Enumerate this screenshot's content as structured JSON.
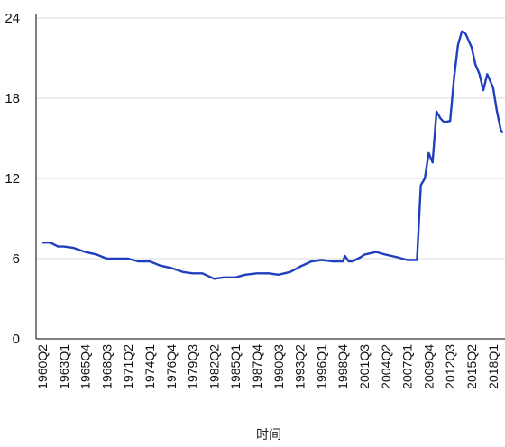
{
  "colors": {
    "line": "#1f3fbf",
    "grid": "#d9d9d9",
    "axis": "#000000",
    "background": "#ffffff"
  },
  "chart_data": {
    "type": "line",
    "title": "",
    "xlabel": "时间",
    "ylabel": "",
    "ylim": [
      0,
      24
    ],
    "yticks": [
      0,
      6,
      12,
      18,
      24
    ],
    "grid": "horizontal",
    "legend": "none",
    "x_tick_labels": [
      "1960Q2",
      "1963Q1",
      "1965Q4",
      "1968Q3",
      "1971Q2",
      "1974Q1",
      "1976Q4",
      "1979Q3",
      "1982Q2",
      "1985Q1",
      "1987Q4",
      "1990Q3",
      "1993Q2",
      "1996Q1",
      "1998Q4",
      "2001Q3",
      "2004Q2",
      "2007Q1",
      "2009Q4",
      "2012Q3",
      "2015Q2",
      "2018Q1"
    ],
    "series": [
      {
        "points": [
          [
            "1960Q2",
            7.2
          ],
          [
            "1961Q2",
            7.2
          ],
          [
            "1962Q2",
            6.9
          ],
          [
            "1963Q1",
            6.9
          ],
          [
            "1964Q2",
            6.8
          ],
          [
            "1965Q4",
            6.5
          ],
          [
            "1967Q2",
            6.3
          ],
          [
            "1968Q3",
            6.0
          ],
          [
            "1970Q1",
            6.0
          ],
          [
            "1971Q2",
            6.0
          ],
          [
            "1972Q3",
            5.8
          ],
          [
            "1974Q1",
            5.8
          ],
          [
            "1975Q2",
            5.5
          ],
          [
            "1976Q4",
            5.3
          ],
          [
            "1978Q2",
            5.0
          ],
          [
            "1979Q3",
            4.9
          ],
          [
            "1980Q4",
            4.9
          ],
          [
            "1982Q2",
            4.5
          ],
          [
            "1983Q3",
            4.6
          ],
          [
            "1985Q1",
            4.6
          ],
          [
            "1986Q2",
            4.8
          ],
          [
            "1987Q4",
            4.9
          ],
          [
            "1989Q2",
            4.9
          ],
          [
            "1990Q3",
            4.8
          ],
          [
            "1992Q1",
            5.0
          ],
          [
            "1993Q2",
            5.4
          ],
          [
            "1994Q4",
            5.8
          ],
          [
            "1996Q1",
            5.9
          ],
          [
            "1997Q3",
            5.8
          ],
          [
            "1998Q4",
            5.8
          ],
          [
            "1999Q1",
            6.2
          ],
          [
            "1999Q3",
            5.8
          ],
          [
            "2000Q1",
            5.8
          ],
          [
            "2001Q1",
            6.1
          ],
          [
            "2001Q3",
            6.3
          ],
          [
            "2003Q1",
            6.5
          ],
          [
            "2004Q2",
            6.3
          ],
          [
            "2005Q4",
            6.1
          ],
          [
            "2007Q1",
            5.9
          ],
          [
            "2008Q2",
            5.9
          ],
          [
            "2008Q4",
            11.5
          ],
          [
            "2009Q2",
            12.0
          ],
          [
            "2009Q4",
            13.9
          ],
          [
            "2010Q2",
            13.2
          ],
          [
            "2010Q4",
            17.0
          ],
          [
            "2011Q2",
            16.5
          ],
          [
            "2011Q4",
            16.2
          ],
          [
            "2012Q3",
            16.3
          ],
          [
            "2013Q1",
            19.5
          ],
          [
            "2013Q3",
            22.0
          ],
          [
            "2014Q1",
            23.0
          ],
          [
            "2014Q3",
            22.8
          ],
          [
            "2015Q2",
            21.8
          ],
          [
            "2015Q4",
            20.5
          ],
          [
            "2016Q2",
            19.8
          ],
          [
            "2016Q4",
            18.6
          ],
          [
            "2017Q2",
            19.8
          ],
          [
            "2018Q1",
            18.8
          ],
          [
            "2018Q3",
            17.0
          ],
          [
            "2019Q1",
            15.6
          ],
          [
            "2019Q2",
            15.4
          ]
        ]
      }
    ]
  }
}
